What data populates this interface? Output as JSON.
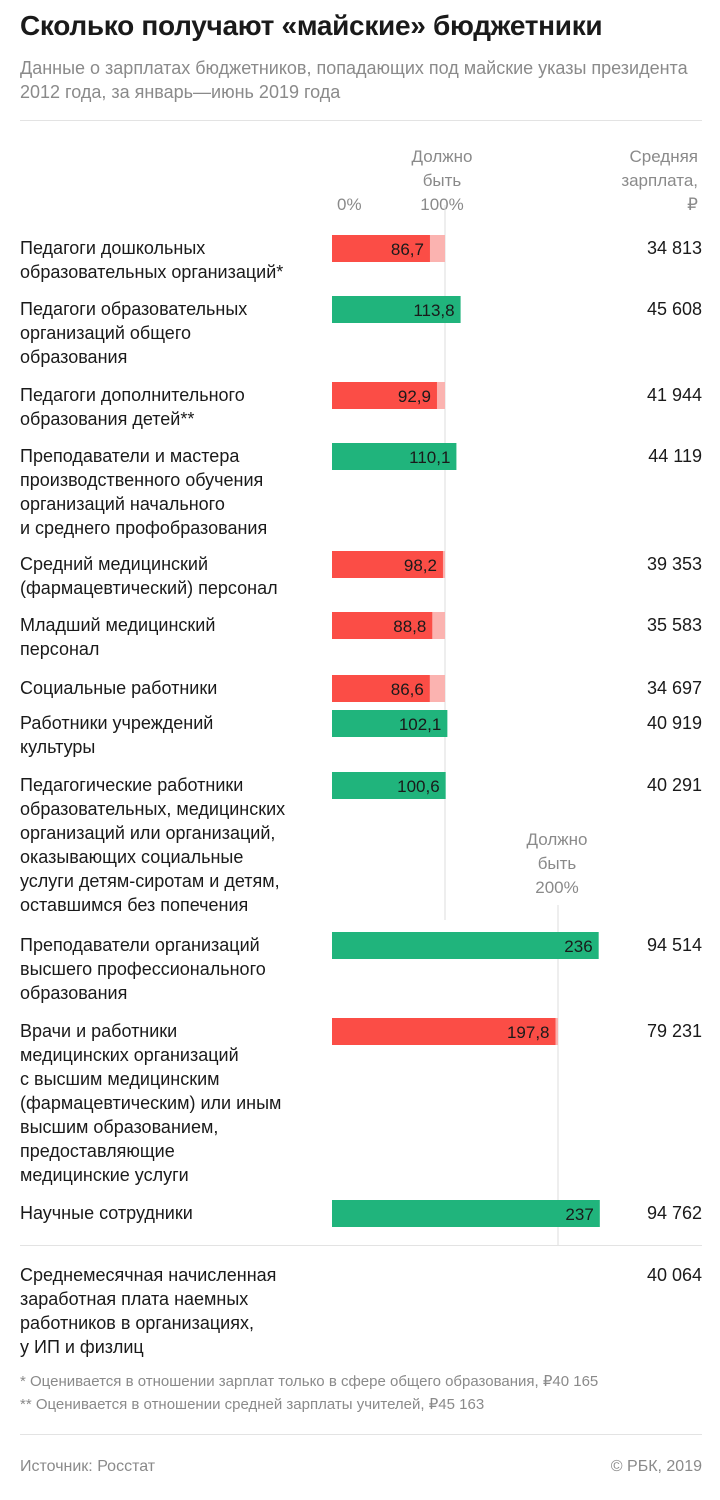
{
  "title": "Сколько получают «майские» бюджетники",
  "subtitle": "Данные о зарплатах бюджетников, попадающих под майские указы президента 2012 года, за январь—июнь 2019 года",
  "header": {
    "zero_label": "0%",
    "target_100_label": "Должно\nбыть\n100%",
    "target_200_label": "Должно\nбыть\n200%",
    "salary_label": "Средняя\nзарплата,\n₽"
  },
  "colors": {
    "below": "#fb4d46",
    "below_remainder": "#fbb3b0",
    "above": "#20b47c",
    "guide": "#dcdcdc"
  },
  "chart_data": {
    "type": "bar",
    "orientation": "horizontal",
    "title": "Сколько получают «майские» бюджетники",
    "value_unit": "% от средней зарплаты",
    "targets": [
      100,
      100,
      100,
      100,
      100,
      100,
      100,
      100,
      100,
      200,
      200,
      200
    ],
    "categories": [
      "Педагоги дошкольных\nобразовательных организаций*",
      "Педагоги образовательных\nорганизаций общего\nобразования",
      "Педагоги дополнительного\nобразования детей**",
      "Преподаватели и мастера\nпроизводственного обучения\nорганизаций начального\nи среднего профобразования",
      "Средний медицинский\n(фармацевтический) персонал",
      "Младший медицинский\nперсонал",
      "Социальные работники",
      "Работники учреждений\nкультуры",
      "Педагогические работники\nобразовательных, медицинских\nорганизаций или организаций,\nоказывающих социальные\nуслуги детям-сиротам и детям,\nоставшимся без попечения",
      "Преподаватели организаций\nвысшего профессионального\nобразования",
      "Врачи и работники\nмедицинских организаций\nс высшим медицинским\n(фармацевтическим) или иным\nвысшим образованием,\nпредоставляющие\nмедицинские услуги",
      "Научные сотрудники"
    ],
    "values": [
      86.7,
      113.8,
      92.9,
      110.1,
      98.2,
      88.8,
      86.6,
      102.1,
      100.6,
      236,
      197.8,
      237
    ],
    "value_labels": [
      "86,7",
      "113,8",
      "92,9",
      "110,1",
      "98,2",
      "88,8",
      "86,6",
      "102,1",
      "100,6",
      "236",
      "197,8",
      "237"
    ],
    "salaries": [
      "34 813",
      "45 608",
      "41 944",
      "44 119",
      "39 353",
      "35 583",
      "34 697",
      "40 919",
      "40 291",
      "94 514",
      "79 231",
      "94 762"
    ]
  },
  "summary": {
    "label": "Среднемесячная начисленная\nзаработная плата наемных\nработников в организациях,\nу ИП и физлиц",
    "salary": "40 064"
  },
  "notes": [
    "* Оценивается в отношении зарплат только в сфере общего образования, ₽40 165",
    "** Оценивается в отношении средней зарплаты учителей, ₽45 163"
  ],
  "source": "Источник: Росстат",
  "copyright": "© РБК, 2019"
}
